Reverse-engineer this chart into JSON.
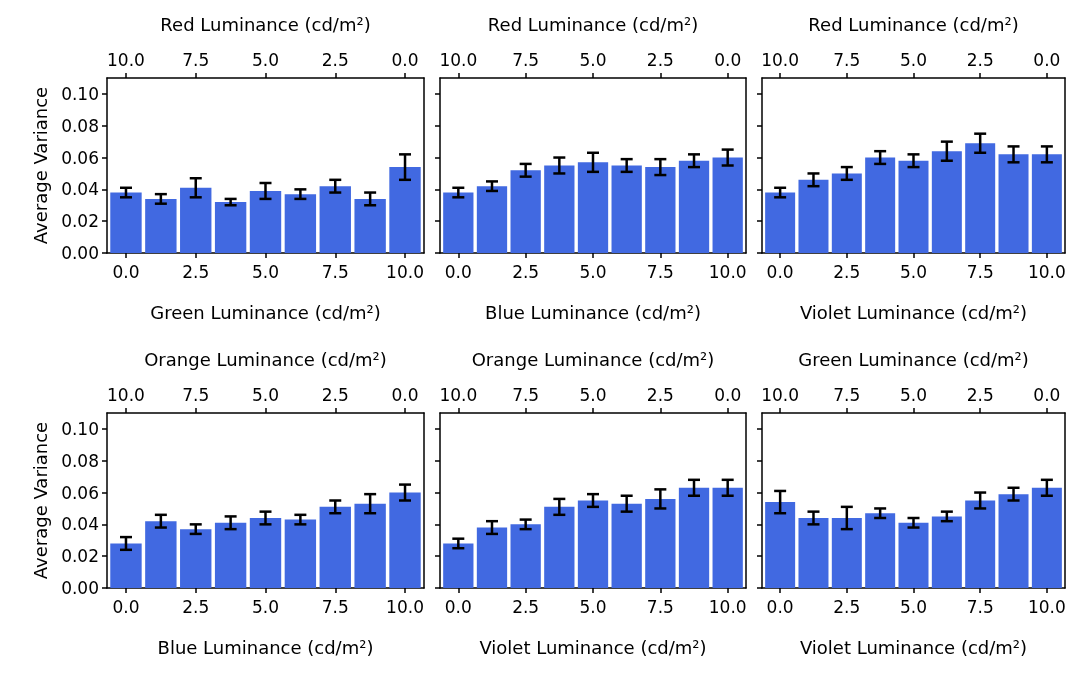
{
  "chart_data": [
    {
      "type": "bar",
      "xlabel": "Green Luminance (cd/m²)",
      "x2label": "Red Luminance (cd/m²)",
      "ylabel": "Average Variance",
      "color": "#4169e1",
      "tick_labels": "xy",
      "x": [
        0,
        1.25,
        2.5,
        3.75,
        5,
        6.25,
        7.5,
        8.75,
        10
      ],
      "values": [
        0.038,
        0.034,
        0.041,
        0.032,
        0.039,
        0.037,
        0.042,
        0.034,
        0.054
      ],
      "errors": [
        0.003,
        0.003,
        0.006,
        0.002,
        0.005,
        0.003,
        0.004,
        0.004,
        0.008
      ],
      "xlim": [
        -0.68,
        10.68
      ],
      "xticks": [
        {
          "value": 0,
          "label": "0.0"
        },
        {
          "value": 2.5,
          "label": "2.5"
        },
        {
          "value": 5,
          "label": "5.0"
        },
        {
          "value": 7.5,
          "label": "7.5"
        },
        {
          "value": 10,
          "label": "10.0"
        }
      ],
      "x2lim": [
        10.68,
        -0.68
      ],
      "x2ticks": [
        {
          "value": 10,
          "label": "10.0"
        },
        {
          "value": 7.5,
          "label": "7.5"
        },
        {
          "value": 5,
          "label": "5.0"
        },
        {
          "value": 2.5,
          "label": "2.5"
        },
        {
          "value": 0,
          "label": "0.0"
        }
      ],
      "ylim": [
        0,
        0.11
      ],
      "yticks": [
        {
          "value": 0,
          "label": "0.00"
        },
        {
          "value": 0.02,
          "label": "0.02"
        },
        {
          "value": 0.04,
          "label": "0.04"
        },
        {
          "value": 0.06,
          "label": "0.06"
        },
        {
          "value": 0.08,
          "label": "0.08"
        },
        {
          "value": 0.1,
          "label": "0.10"
        }
      ]
    },
    {
      "type": "bar",
      "xlabel": "Blue Luminance (cd/m²)",
      "x2label": "Red Luminance (cd/m²)",
      "color": "#4169e1",
      "tick_labels": "x",
      "x": [
        0,
        1.25,
        2.5,
        3.75,
        5,
        6.25,
        7.5,
        8.75,
        10
      ],
      "values": [
        0.038,
        0.042,
        0.052,
        0.055,
        0.057,
        0.055,
        0.054,
        0.058,
        0.06
      ],
      "errors": [
        0.003,
        0.003,
        0.004,
        0.005,
        0.006,
        0.004,
        0.005,
        0.004,
        0.005
      ],
      "xlim": [
        -0.68,
        10.68
      ],
      "xticks": [
        {
          "value": 0,
          "label": "0.0"
        },
        {
          "value": 2.5,
          "label": "2.5"
        },
        {
          "value": 5,
          "label": "5.0"
        },
        {
          "value": 7.5,
          "label": "7.5"
        },
        {
          "value": 10,
          "label": "10.0"
        }
      ],
      "x2lim": [
        10.68,
        -0.68
      ],
      "x2ticks": [
        {
          "value": 10,
          "label": "10.0"
        },
        {
          "value": 7.5,
          "label": "7.5"
        },
        {
          "value": 5,
          "label": "5.0"
        },
        {
          "value": 2.5,
          "label": "2.5"
        },
        {
          "value": 0,
          "label": "0.0"
        }
      ],
      "ylim": [
        0,
        0.11
      ],
      "yticks": [
        {
          "value": 0,
          "label": null
        },
        {
          "value": 0.02,
          "label": null
        },
        {
          "value": 0.04,
          "label": null
        },
        {
          "value": 0.06,
          "label": null
        },
        {
          "value": 0.08,
          "label": null
        },
        {
          "value": 0.1,
          "label": null
        }
      ]
    },
    {
      "type": "bar",
      "xlabel": "Violet Luminance (cd/m²)",
      "x2label": "Red Luminance (cd/m²)",
      "color": "#4169e1",
      "tick_labels": "x",
      "x": [
        0,
        1.25,
        2.5,
        3.75,
        5,
        6.25,
        7.5,
        8.75,
        10
      ],
      "values": [
        0.038,
        0.046,
        0.05,
        0.06,
        0.058,
        0.064,
        0.069,
        0.062,
        0.062
      ],
      "errors": [
        0.003,
        0.004,
        0.004,
        0.004,
        0.004,
        0.006,
        0.006,
        0.005,
        0.005
      ],
      "xlim": [
        -0.68,
        10.68
      ],
      "xticks": [
        {
          "value": 0,
          "label": "0.0"
        },
        {
          "value": 2.5,
          "label": "2.5"
        },
        {
          "value": 5,
          "label": "5.0"
        },
        {
          "value": 7.5,
          "label": "7.5"
        },
        {
          "value": 10,
          "label": "10.0"
        }
      ],
      "x2lim": [
        10.68,
        -0.68
      ],
      "x2ticks": [
        {
          "value": 10,
          "label": "10.0"
        },
        {
          "value": 7.5,
          "label": "7.5"
        },
        {
          "value": 5,
          "label": "5.0"
        },
        {
          "value": 2.5,
          "label": "2.5"
        },
        {
          "value": 0,
          "label": "0.0"
        }
      ],
      "ylim": [
        0,
        0.11
      ],
      "yticks": [
        {
          "value": 0,
          "label": null
        },
        {
          "value": 0.02,
          "label": null
        },
        {
          "value": 0.04,
          "label": null
        },
        {
          "value": 0.06,
          "label": null
        },
        {
          "value": 0.08,
          "label": null
        },
        {
          "value": 0.1,
          "label": null
        }
      ]
    },
    {
      "type": "bar",
      "xlabel": "Blue Luminance (cd/m²)",
      "x2label": "Orange Luminance (cd/m²)",
      "ylabel": "Average Variance",
      "color": "#4169e1",
      "tick_labels": "xy",
      "x": [
        0,
        1.25,
        2.5,
        3.75,
        5,
        6.25,
        7.5,
        8.75,
        10
      ],
      "values": [
        0.028,
        0.042,
        0.037,
        0.041,
        0.044,
        0.043,
        0.051,
        0.053,
        0.06
      ],
      "errors": [
        0.004,
        0.004,
        0.003,
        0.004,
        0.004,
        0.003,
        0.004,
        0.006,
        0.005
      ],
      "xlim": [
        -0.68,
        10.68
      ],
      "xticks": [
        {
          "value": 0,
          "label": "0.0"
        },
        {
          "value": 2.5,
          "label": "2.5"
        },
        {
          "value": 5,
          "label": "5.0"
        },
        {
          "value": 7.5,
          "label": "7.5"
        },
        {
          "value": 10,
          "label": "10.0"
        }
      ],
      "x2lim": [
        10.68,
        -0.68
      ],
      "x2ticks": [
        {
          "value": 10,
          "label": "10.0"
        },
        {
          "value": 7.5,
          "label": "7.5"
        },
        {
          "value": 5,
          "label": "5.0"
        },
        {
          "value": 2.5,
          "label": "2.5"
        },
        {
          "value": 0,
          "label": "0.0"
        }
      ],
      "ylim": [
        0,
        0.11
      ],
      "yticks": [
        {
          "value": 0,
          "label": "0.00"
        },
        {
          "value": 0.02,
          "label": "0.02"
        },
        {
          "value": 0.04,
          "label": "0.04"
        },
        {
          "value": 0.06,
          "label": "0.06"
        },
        {
          "value": 0.08,
          "label": "0.08"
        },
        {
          "value": 0.1,
          "label": "0.10"
        }
      ]
    },
    {
      "type": "bar",
      "xlabel": "Violet Luminance (cd/m²)",
      "x2label": "Orange Luminance (cd/m²)",
      "color": "#4169e1",
      "tick_labels": "x",
      "x": [
        0,
        1.25,
        2.5,
        3.75,
        5,
        6.25,
        7.5,
        8.75,
        10
      ],
      "values": [
        0.028,
        0.038,
        0.04,
        0.051,
        0.055,
        0.053,
        0.056,
        0.063,
        0.063
      ],
      "errors": [
        0.003,
        0.004,
        0.003,
        0.005,
        0.004,
        0.005,
        0.006,
        0.005,
        0.005
      ],
      "xlim": [
        -0.68,
        10.68
      ],
      "xticks": [
        {
          "value": 0,
          "label": "0.0"
        },
        {
          "value": 2.5,
          "label": "2.5"
        },
        {
          "value": 5,
          "label": "5.0"
        },
        {
          "value": 7.5,
          "label": "7.5"
        },
        {
          "value": 10,
          "label": "10.0"
        }
      ],
      "x2lim": [
        10.68,
        -0.68
      ],
      "x2ticks": [
        {
          "value": 10,
          "label": "10.0"
        },
        {
          "value": 7.5,
          "label": "7.5"
        },
        {
          "value": 5,
          "label": "5.0"
        },
        {
          "value": 2.5,
          "label": "2.5"
        },
        {
          "value": 0,
          "label": "0.0"
        }
      ],
      "ylim": [
        0,
        0.11
      ],
      "yticks": [
        {
          "value": 0,
          "label": null
        },
        {
          "value": 0.02,
          "label": null
        },
        {
          "value": 0.04,
          "label": null
        },
        {
          "value": 0.06,
          "label": null
        },
        {
          "value": 0.08,
          "label": null
        },
        {
          "value": 0.1,
          "label": null
        }
      ]
    },
    {
      "type": "bar",
      "xlabel": "Violet Luminance (cd/m²)",
      "x2label": "Green Luminance (cd/m²)",
      "color": "#4169e1",
      "tick_labels": "x",
      "x": [
        0,
        1.25,
        2.5,
        3.75,
        5,
        6.25,
        7.5,
        8.75,
        10
      ],
      "values": [
        0.054,
        0.044,
        0.044,
        0.047,
        0.041,
        0.045,
        0.055,
        0.059,
        0.063
      ],
      "errors": [
        0.007,
        0.004,
        0.007,
        0.003,
        0.003,
        0.003,
        0.005,
        0.004,
        0.005
      ],
      "xlim": [
        -0.68,
        10.68
      ],
      "xticks": [
        {
          "value": 0,
          "label": "0.0"
        },
        {
          "value": 2.5,
          "label": "2.5"
        },
        {
          "value": 5,
          "label": "5.0"
        },
        {
          "value": 7.5,
          "label": "7.5"
        },
        {
          "value": 10,
          "label": "10.0"
        }
      ],
      "x2lim": [
        10.68,
        -0.68
      ],
      "x2ticks": [
        {
          "value": 10,
          "label": "10.0"
        },
        {
          "value": 7.5,
          "label": "7.5"
        },
        {
          "value": 5,
          "label": "5.0"
        },
        {
          "value": 2.5,
          "label": "2.5"
        },
        {
          "value": 0,
          "label": "0.0"
        }
      ],
      "ylim": [
        0,
        0.11
      ],
      "yticks": [
        {
          "value": 0,
          "label": null
        },
        {
          "value": 0.02,
          "label": null
        },
        {
          "value": 0.04,
          "label": null
        },
        {
          "value": 0.06,
          "label": null
        },
        {
          "value": 0.08,
          "label": null
        },
        {
          "value": 0.1,
          "label": null
        }
      ]
    }
  ]
}
